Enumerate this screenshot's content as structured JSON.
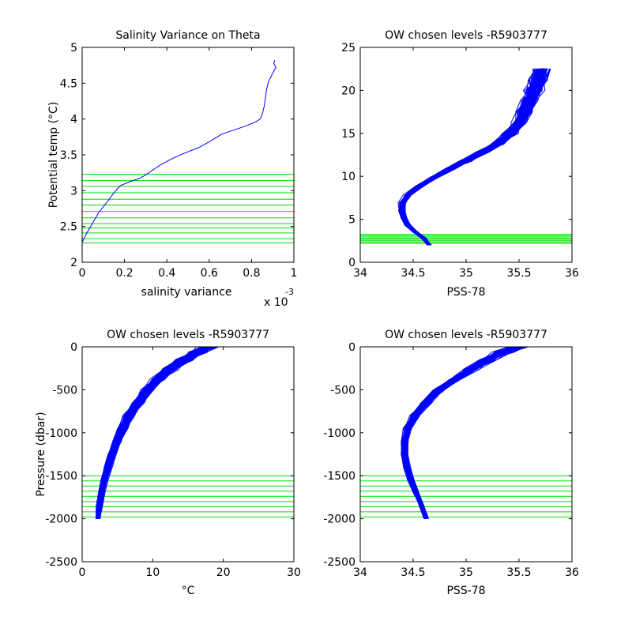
{
  "chart_data": [
    {
      "type": "line",
      "title": "Salinity Variance on Theta",
      "xlabel": "salinity variance",
      "ylabel": "Potential temp (°C)",
      "x_multiplier_label": "x 10",
      "x_multiplier_exponent": "-3",
      "xlim": [
        0,
        1
      ],
      "ylim": [
        2,
        5
      ],
      "xticks": [
        0,
        0.2,
        0.4,
        0.6,
        0.8,
        1
      ],
      "xtick_labels": [
        "0",
        "0.2",
        "0.4",
        "0.6",
        "0.8",
        "1"
      ],
      "yticks": [
        2,
        2.5,
        3,
        3.5,
        4,
        4.5,
        5
      ],
      "ytick_labels": [
        "2",
        "2.5",
        "3",
        "3.5",
        "4",
        "4.5",
        "5"
      ],
      "series": [
        {
          "color": "#0000ff",
          "x": [
            0.0,
            0.02,
            0.05,
            0.08,
            0.12,
            0.15,
            0.18,
            0.22,
            0.27,
            0.3,
            0.33,
            0.37,
            0.42,
            0.48,
            0.55,
            0.61,
            0.66,
            0.72,
            0.77,
            0.82,
            0.84,
            0.85,
            0.86,
            0.865,
            0.87,
            0.88,
            0.9,
            0.915,
            0.905,
            0.91
          ],
          "y": [
            2.28,
            2.4,
            2.55,
            2.7,
            2.85,
            2.97,
            3.07,
            3.12,
            3.17,
            3.22,
            3.28,
            3.36,
            3.44,
            3.52,
            3.6,
            3.7,
            3.79,
            3.85,
            3.9,
            3.96,
            4.0,
            4.06,
            4.18,
            4.28,
            4.4,
            4.52,
            4.64,
            4.72,
            4.78,
            4.82
          ]
        }
      ],
      "hlines_color": "#00dd00",
      "hlines": [
        2.27,
        2.33,
        2.41,
        2.48,
        2.54,
        2.62,
        2.71,
        2.8,
        2.88,
        2.97,
        3.06,
        3.14,
        3.23
      ]
    },
    {
      "type": "line",
      "title": "OW chosen levels -R5903777",
      "xlabel": "PSS-78",
      "ylabel": "",
      "xlim": [
        34,
        36
      ],
      "ylim": [
        0,
        25
      ],
      "xticks": [
        34,
        34.5,
        35,
        35.5,
        36
      ],
      "xtick_labels": [
        "34",
        "34.5",
        "35",
        "35.5",
        "36"
      ],
      "yticks": [
        0,
        5,
        10,
        15,
        20,
        25
      ],
      "ytick_labels": [
        "0",
        "5",
        "10",
        "15",
        "20",
        "25"
      ],
      "profile_color": "#0000ff",
      "profile_center": {
        "x": [
          34.65,
          34.6,
          34.52,
          34.45,
          34.41,
          34.39,
          34.4,
          34.45,
          34.55,
          34.7,
          34.85,
          35.0,
          35.15,
          35.3,
          35.42,
          35.5,
          35.55,
          35.6,
          35.64,
          35.68,
          35.7
        ],
        "y": [
          2.0,
          2.8,
          3.5,
          4.3,
          5.2,
          6.0,
          6.9,
          7.8,
          8.8,
          9.9,
          10.9,
          11.8,
          12.8,
          13.8,
          15.0,
          16.2,
          17.5,
          18.8,
          20.0,
          21.2,
          22.5
        ]
      },
      "profile_count": 120,
      "hlines_color": "#00dd00",
      "hlines": [
        2.2,
        2.35,
        2.5,
        2.65,
        2.8,
        2.95,
        3.1,
        3.25
      ]
    },
    {
      "type": "line",
      "title": "OW chosen levels -R5903777",
      "xlabel": "°C",
      "ylabel": "Pressure (dbar)",
      "xlim": [
        0,
        30
      ],
      "ylim": [
        -2500,
        0
      ],
      "xticks": [
        0,
        10,
        20,
        30
      ],
      "xtick_labels": [
        "0",
        "10",
        "20",
        "30"
      ],
      "yticks": [
        -2500,
        -2000,
        -1500,
        -1000,
        -500,
        0
      ],
      "ytick_labels": [
        "-2500",
        "-2000",
        "-1500",
        "-1000",
        "-500",
        "0"
      ],
      "profile_color": "#0000ff",
      "profile_center": {
        "x": [
          2.3,
          2.5,
          2.8,
          3.2,
          3.7,
          4.3,
          5.0,
          5.8,
          6.8,
          8.0,
          9.3,
          10.8,
          12.5,
          14.5,
          16.5,
          18.0
        ],
        "y": [
          -2000,
          -1850,
          -1700,
          -1550,
          -1400,
          -1250,
          -1100,
          -950,
          -800,
          -650,
          -500,
          -380,
          -260,
          -150,
          -60,
          0
        ]
      },
      "profile_count": 120,
      "hlines_color": "#00dd00",
      "hlines": [
        -1500,
        -1560,
        -1620,
        -1680,
        -1740,
        -1800,
        -1860,
        -1920,
        -1980
      ]
    },
    {
      "type": "line",
      "title": "OW chosen levels -R5903777",
      "xlabel": "PSS-78",
      "ylabel": "",
      "xlim": [
        34,
        36
      ],
      "ylim": [
        -2500,
        0
      ],
      "xticks": [
        34,
        34.5,
        35,
        35.5,
        36
      ],
      "xtick_labels": [
        "34",
        "34.5",
        "35",
        "35.5",
        "36"
      ],
      "yticks": [
        -2500,
        -2000,
        -1500,
        -1000,
        -500,
        0
      ],
      "ytick_labels": [
        "-2500",
        "-2000",
        "-1500",
        "-1000",
        "-500",
        "0"
      ],
      "profile_color": "#0000ff",
      "profile_center": {
        "x": [
          34.62,
          34.58,
          34.53,
          34.48,
          34.44,
          34.42,
          34.42,
          34.45,
          34.52,
          34.62,
          34.75,
          34.9,
          35.05,
          35.2,
          35.35,
          35.5
        ],
        "y": [
          -2000,
          -1850,
          -1700,
          -1550,
          -1400,
          -1250,
          -1100,
          -950,
          -800,
          -650,
          -500,
          -380,
          -260,
          -150,
          -60,
          0
        ]
      },
      "profile_count": 120,
      "hlines_color": "#00dd00",
      "hlines": [
        -1500,
        -1560,
        -1620,
        -1680,
        -1740,
        -1800,
        -1860,
        -1920,
        -1980
      ]
    }
  ]
}
